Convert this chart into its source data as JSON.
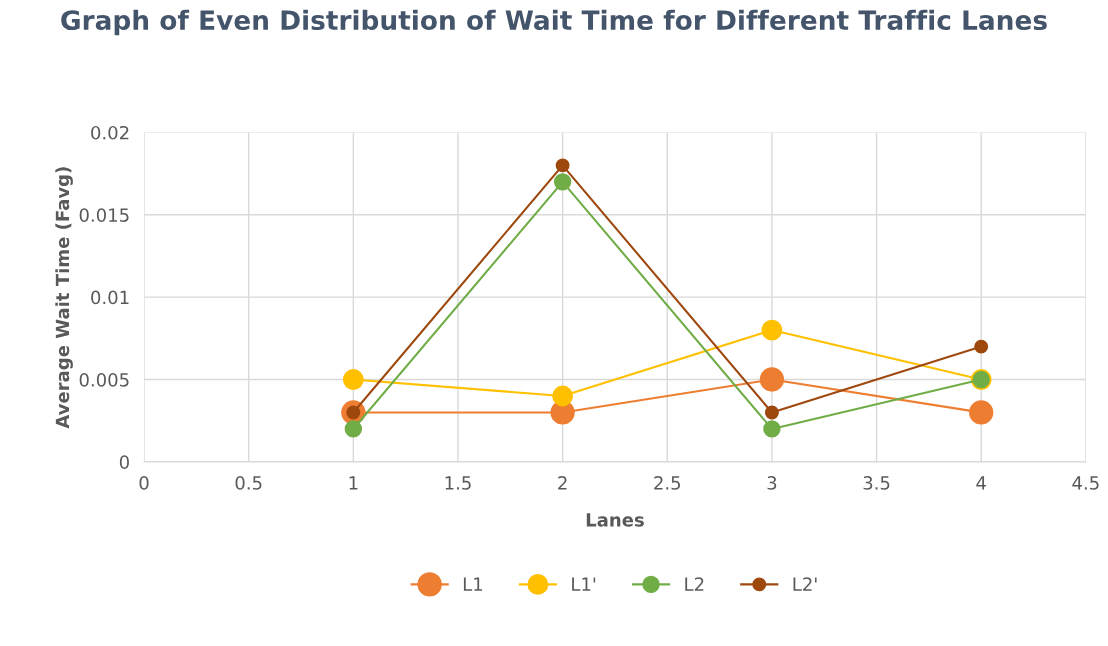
{
  "chart_data": {
    "type": "line",
    "title": "Graph of Even Distribution of Wait Time for Different Traffic Lanes",
    "xlabel": "Lanes",
    "ylabel": "Average Wait Time (Favg)",
    "x": [
      1,
      2,
      3,
      4
    ],
    "series": [
      {
        "name": "L1",
        "color": "#ed7d31",
        "values": [
          0.003,
          0.003,
          0.005,
          0.003
        ]
      },
      {
        "name": "L1'",
        "color": "#ffc000",
        "values": [
          0.005,
          0.004,
          0.008,
          0.005
        ]
      },
      {
        "name": "L2",
        "color": "#70ad47",
        "values": [
          0.002,
          0.017,
          0.002,
          0.005
        ]
      },
      {
        "name": "L2'",
        "color": "#9e480e",
        "values": [
          0.003,
          0.018,
          0.003,
          0.007
        ]
      }
    ],
    "xlim": [
      0,
      4.5
    ],
    "xticks": [
      0,
      0.5,
      1,
      1.5,
      2,
      2.5,
      3,
      3.5,
      4,
      4.5
    ],
    "ylim": [
      0,
      0.02
    ],
    "yticks": [
      0,
      0.005,
      0.01,
      0.015,
      0.02
    ],
    "grid": true,
    "legend": "bottom",
    "marker": "circle",
    "line_style": "solid"
  }
}
